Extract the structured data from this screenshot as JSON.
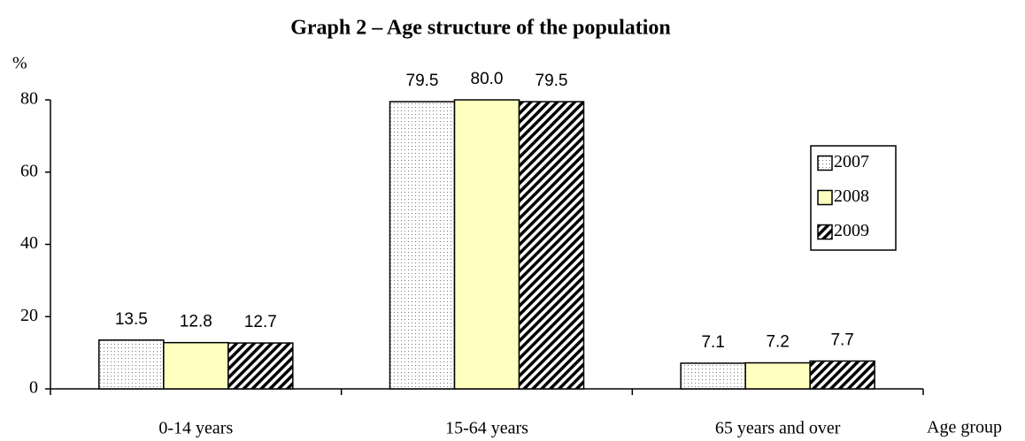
{
  "chart_data": {
    "type": "bar",
    "title": "Graph 2 – Age structure of the population",
    "y_label": "%",
    "x_label": "Age group",
    "categories": [
      "0-14 years",
      "15-64 years",
      "65 years and over"
    ],
    "series": [
      {
        "name": "2007",
        "color": "#ffffff",
        "pattern": "dots",
        "values": [
          13.5,
          79.5,
          7.1
        ],
        "value_labels": [
          "13.5",
          "79.5",
          "7.1"
        ]
      },
      {
        "name": "2008",
        "color": "#ffffc0",
        "pattern": "solid",
        "values": [
          12.8,
          80.0,
          7.2
        ],
        "value_labels": [
          "12.8",
          "80.0",
          "7.2"
        ]
      },
      {
        "name": "2009",
        "color": "#ffffff",
        "pattern": "hatch",
        "values": [
          12.7,
          79.5,
          7.7
        ],
        "value_labels": [
          "12.7",
          "79.5",
          "7.7"
        ]
      }
    ],
    "ylim": [
      0,
      80
    ],
    "yticks": [
      0,
      20,
      40,
      60,
      80
    ],
    "grid": false,
    "legend": "right"
  }
}
